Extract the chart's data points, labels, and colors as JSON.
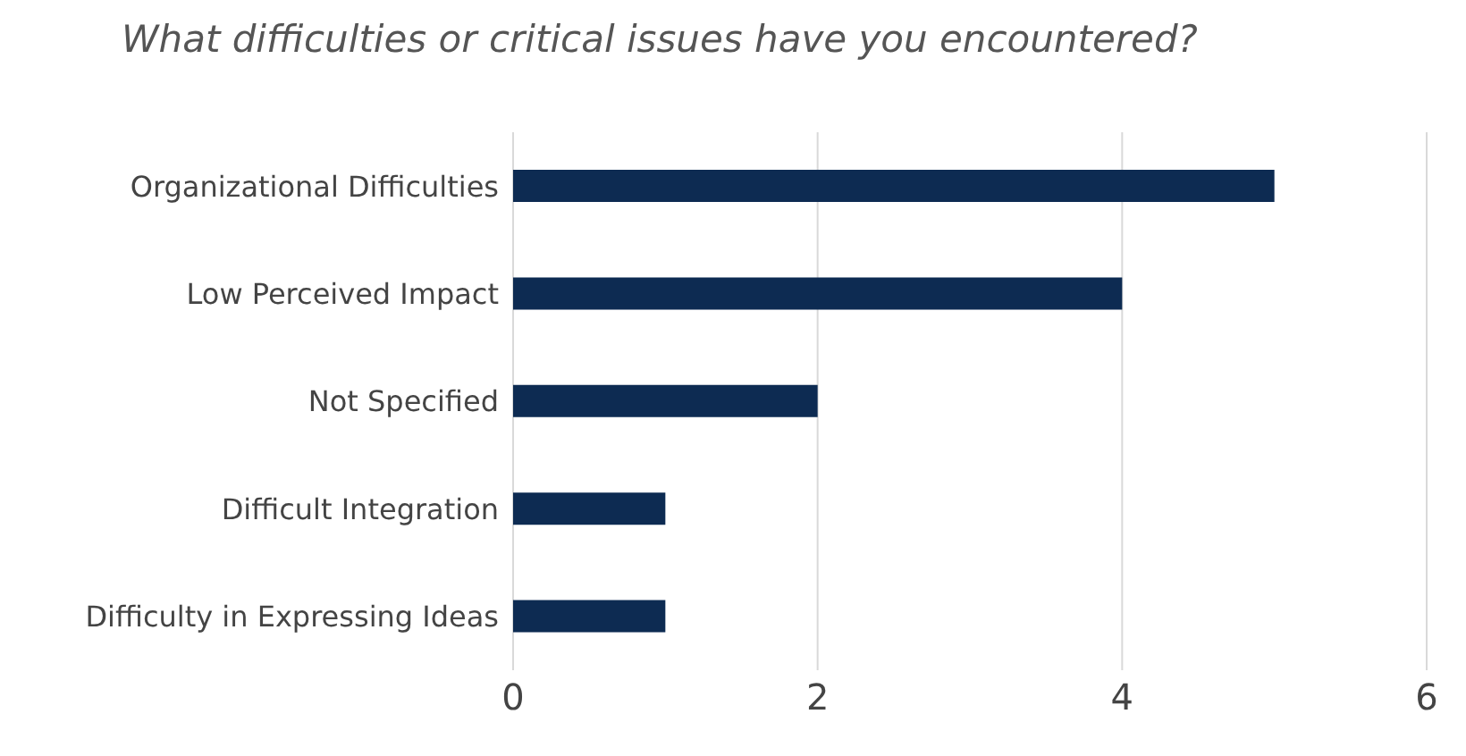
{
  "chart_data": {
    "type": "bar",
    "orientation": "horizontal",
    "title": "What difficulties or critical issues have you encountered?",
    "categories": [
      "Organizational Difficulties",
      "Low Perceived Impact",
      "Not Specified",
      "Difficult Integration",
      "Difficulty in Expressing Ideas"
    ],
    "values": [
      5,
      4,
      2,
      1,
      1
    ],
    "color": "#0d2b52",
    "xlim": [
      0,
      6
    ],
    "xticks": [
      0,
      2,
      4,
      6
    ],
    "grid": "x",
    "legend": false
  }
}
